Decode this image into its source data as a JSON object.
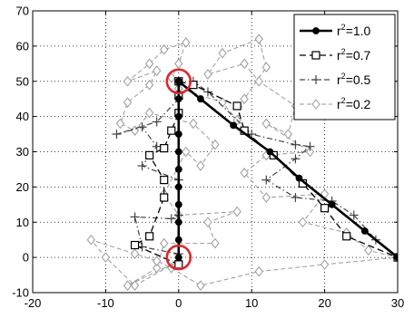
{
  "chart_data": {
    "type": "line",
    "xlim": [
      -20,
      30
    ],
    "ylim": [
      -10,
      70
    ],
    "x_ticks": [
      "-20",
      "-10",
      "0",
      "10",
      "20",
      "30"
    ],
    "y_ticks": [
      "-10",
      "0",
      "10",
      "20",
      "30",
      "40",
      "50",
      "60",
      "70"
    ],
    "grid": true,
    "legend_placement": "top-right",
    "legend": [
      {
        "prefix": "r",
        "sup": "2",
        "value": "=1.0"
      },
      {
        "prefix": "r",
        "sup": "2",
        "value": "=0.7"
      },
      {
        "prefix": "r",
        "sup": "2",
        "value": "=0.5"
      },
      {
        "prefix": "r",
        "sup": "2",
        "value": "=0.2"
      }
    ],
    "highlights": [
      {
        "x": 0,
        "y": 50
      },
      {
        "x": 0,
        "y": 0
      }
    ],
    "series": [
      {
        "legend_index": 0,
        "color": "#000000",
        "marker": "dot",
        "points": [
          [
            0,
            0
          ],
          [
            0,
            5
          ],
          [
            0,
            10
          ],
          [
            0,
            15
          ],
          [
            0,
            20
          ],
          [
            0,
            25
          ],
          [
            0,
            30
          ],
          [
            0,
            35
          ],
          [
            0,
            40
          ],
          [
            0,
            45
          ],
          [
            0,
            50
          ],
          [
            3.0,
            45.0
          ],
          [
            7.5,
            37.5
          ],
          [
            12.5,
            30.0
          ],
          [
            16.5,
            22.5
          ],
          [
            21.0,
            15.0
          ],
          [
            25.5,
            7.5
          ],
          [
            30,
            0
          ]
        ]
      },
      {
        "legend_index": 1,
        "color": "#000000",
        "marker": "square",
        "points": [
          [
            0,
            -2
          ],
          [
            -6,
            3.5
          ],
          [
            -4,
            6
          ],
          [
            -2,
            17
          ],
          [
            -2,
            22
          ],
          [
            -4,
            29
          ],
          [
            -2,
            31
          ],
          [
            -1,
            36
          ],
          [
            0,
            41
          ],
          [
            0,
            46
          ],
          [
            0,
            50
          ],
          [
            2,
            49
          ],
          [
            8,
            43
          ],
          [
            9,
            36
          ],
          [
            13,
            29
          ],
          [
            17,
            21
          ],
          [
            20,
            14
          ],
          [
            23,
            6
          ],
          [
            30,
            0
          ]
        ]
      },
      {
        "legend_index": 2,
        "color": "#444444",
        "marker": "plus",
        "points": [
          [
            0,
            1
          ],
          [
            -5,
            3
          ],
          [
            -6,
            11.5
          ],
          [
            -1,
            11
          ],
          [
            0,
            12
          ],
          [
            0,
            22
          ],
          [
            -5,
            26
          ],
          [
            -3,
            31.5
          ],
          [
            -5,
            37
          ],
          [
            -8.5,
            35
          ],
          [
            -3,
            38.5
          ],
          [
            0,
            45
          ],
          [
            2,
            50
          ],
          [
            4,
            47
          ],
          [
            10,
            35
          ],
          [
            16,
            32
          ],
          [
            18,
            31.5
          ],
          [
            16,
            28
          ],
          [
            12,
            22
          ],
          [
            16,
            17
          ],
          [
            21,
            16
          ],
          [
            24,
            12
          ],
          [
            27,
            5
          ],
          [
            30,
            0
          ]
        ]
      },
      {
        "legend_index": 3,
        "color": "#999999",
        "marker": "diamond",
        "points": [
          [
            0,
            -1
          ],
          [
            -7,
            -8
          ],
          [
            -3,
            -3
          ],
          [
            -2,
            4
          ],
          [
            5,
            4
          ],
          [
            4,
            10
          ],
          [
            8,
            13
          ],
          [
            0,
            12
          ],
          [
            -2,
            18
          ],
          [
            1,
            30
          ],
          [
            3,
            26
          ],
          [
            5,
            32
          ],
          [
            2,
            38
          ],
          [
            -4,
            41
          ],
          [
            -6,
            36
          ],
          [
            -8,
            38
          ],
          [
            -7,
            44
          ],
          [
            -4,
            49
          ],
          [
            -3,
            53
          ],
          [
            -7,
            50
          ],
          [
            -4,
            55
          ],
          [
            -2,
            59
          ],
          [
            1,
            61
          ],
          [
            0,
            55
          ],
          [
            -1,
            51
          ],
          [
            0,
            48
          ],
          [
            6,
            44
          ],
          [
            8,
            39
          ],
          [
            9,
            45
          ],
          [
            12,
            54
          ],
          [
            11,
            62
          ],
          [
            6,
            58
          ],
          [
            4,
            52
          ],
          [
            9,
            55
          ],
          [
            11,
            50
          ],
          [
            16,
            43
          ],
          [
            15,
            35
          ],
          [
            12,
            38
          ],
          [
            18,
            30
          ],
          [
            12,
            29
          ],
          [
            9,
            24
          ],
          [
            12,
            17
          ],
          [
            20,
            18
          ],
          [
            17,
            10
          ],
          [
            23,
            7
          ],
          [
            26,
            2
          ],
          [
            30,
            0
          ],
          [
            20,
            -2
          ],
          [
            11,
            -4
          ],
          [
            3,
            -8
          ],
          [
            -1,
            -3
          ],
          [
            -3,
            -1
          ],
          [
            -6,
            1
          ],
          [
            -12,
            5
          ],
          [
            -10,
            0
          ],
          [
            -6,
            -8
          ],
          [
            0,
            -1
          ]
        ]
      }
    ]
  }
}
